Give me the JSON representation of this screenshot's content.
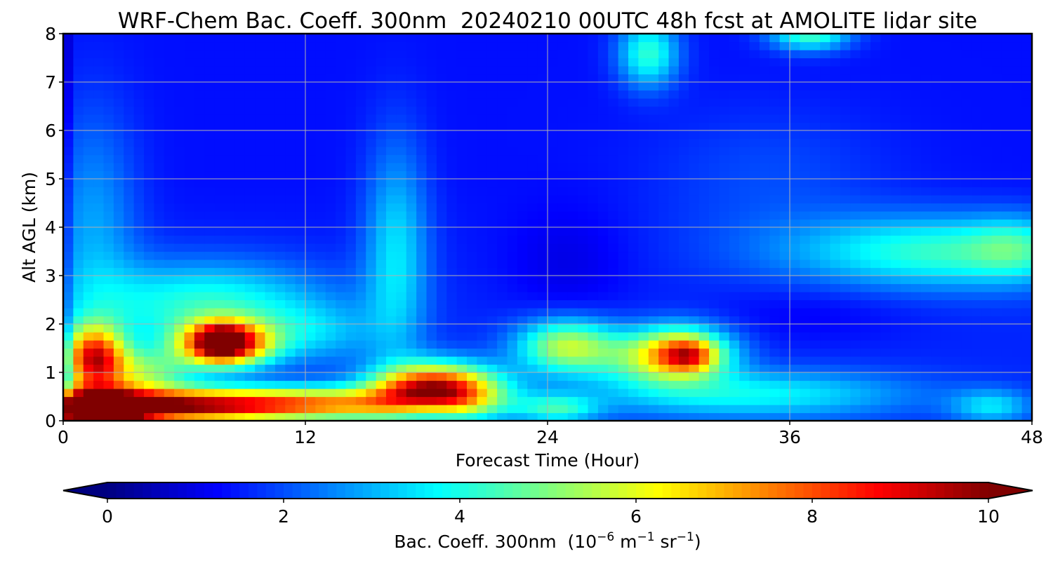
{
  "chart_data": {
    "type": "heatmap",
    "title": "WRF-Chem Bac. Coeff. 300nm  20240210 00UTC 48h fcst at AMOLITE lidar site",
    "xlabel": "Forecast Time (Hour)",
    "ylabel": "Alt AGL (km)",
    "xlim": [
      0,
      48
    ],
    "ylim": [
      0,
      8
    ],
    "xticks": [
      "0",
      "12",
      "24",
      "36",
      "48"
    ],
    "yticks": [
      "0",
      "1",
      "2",
      "3",
      "4",
      "5",
      "6",
      "7",
      "8"
    ],
    "grid": true,
    "colormap": "jet",
    "colorbar": {
      "orientation": "horizontal",
      "placement": "bottom",
      "range": [
        0,
        10
      ],
      "extend": "both",
      "ticks": [
        "0",
        "2",
        "4",
        "6",
        "8",
        "10"
      ],
      "label_main": "Bac. Coeff. 300nm  (10",
      "label_exp1": "−6",
      "label_mid": " m",
      "label_exp2": "−1",
      "label_mid2": " sr",
      "label_exp3": "−1",
      "label_end": ")"
    },
    "x": [
      0,
      1,
      2,
      3,
      4,
      5,
      6,
      7,
      8,
      9,
      10,
      11,
      12,
      13,
      14,
      15,
      16,
      17,
      18,
      19,
      20,
      21,
      22,
      23,
      24,
      25,
      26,
      27,
      28,
      29,
      30,
      31,
      32,
      33,
      34,
      35,
      36,
      37,
      38,
      39,
      40,
      41,
      42,
      43,
      44,
      45,
      46,
      47,
      48
    ],
    "y": [
      0,
      0.25,
      0.5,
      0.75,
      1,
      1.25,
      1.5,
      1.75,
      2,
      2.25,
      2.5,
      2.75,
      3,
      3.25,
      3.5,
      3.75,
      4,
      4.25,
      4.5,
      4.75,
      5,
      5.25,
      5.5,
      5.75,
      6,
      6.25,
      6.5,
      6.75,
      7,
      7.25,
      7.5,
      7.75,
      8
    ],
    "features": [
      {
        "x": 1.5,
        "y": 0.2,
        "rx": 2.5,
        "ry": 0.45,
        "v": 9.0
      },
      {
        "x": 5,
        "y": 0.3,
        "rx": 5,
        "ry": 0.35,
        "v": 6.5
      },
      {
        "x": 12,
        "y": 0.35,
        "rx": 6,
        "ry": 0.35,
        "v": 5.5
      },
      {
        "x": 18.5,
        "y": 0.6,
        "rx": 3.0,
        "ry": 0.55,
        "v": 8.5
      },
      {
        "x": 18,
        "y": 0.25,
        "rx": 2,
        "ry": 0.35,
        "v": -2.5
      },
      {
        "x": 1.5,
        "y": 1.3,
        "rx": 1.5,
        "ry": 0.65,
        "v": 6.5
      },
      {
        "x": 4,
        "y": 1.0,
        "rx": 2.5,
        "ry": 0.5,
        "v": 3.0
      },
      {
        "x": 8,
        "y": 1.6,
        "rx": 2.2,
        "ry": 0.45,
        "v": 8.0
      },
      {
        "x": 7.8,
        "y": 1.65,
        "rx": 1.0,
        "ry": 0.3,
        "v": 2.5
      },
      {
        "x": 7,
        "y": 2.4,
        "rx": 6,
        "ry": 0.9,
        "v": 2.6
      },
      {
        "x": 12.5,
        "y": 1.8,
        "rx": 3,
        "ry": 0.6,
        "v": 1.2
      },
      {
        "x": 16.5,
        "y": 3.5,
        "rx": 1.6,
        "ry": 2.3,
        "v": 2.0
      },
      {
        "x": 1.5,
        "y": 4.0,
        "rx": 2.2,
        "ry": 2.5,
        "v": 1.4
      },
      {
        "x": 25,
        "y": 1.55,
        "rx": 2.5,
        "ry": 0.55,
        "v": 4.0
      },
      {
        "x": 30.5,
        "y": 1.4,
        "rx": 2.5,
        "ry": 0.55,
        "v": 5.5
      },
      {
        "x": 31,
        "y": 1.35,
        "rx": 1.2,
        "ry": 0.3,
        "v": 2.5
      },
      {
        "x": 28,
        "y": 1.2,
        "rx": 2.5,
        "ry": 0.5,
        "v": 1.0
      },
      {
        "x": 34,
        "y": 0.55,
        "rx": 8,
        "ry": 0.5,
        "v": 2.2
      },
      {
        "x": 24.5,
        "y": 0.25,
        "rx": 2,
        "ry": 0.3,
        "v": 2.3
      },
      {
        "x": 44,
        "y": 3.5,
        "rx": 8,
        "ry": 0.75,
        "v": 2.8
      },
      {
        "x": 47,
        "y": 3.6,
        "rx": 2,
        "ry": 0.6,
        "v": 1.0
      },
      {
        "x": 29,
        "y": 7.6,
        "rx": 1.5,
        "ry": 0.7,
        "v": 2.8
      },
      {
        "x": 37,
        "y": 8.0,
        "rx": 2,
        "ry": 0.35,
        "v": 3.0
      },
      {
        "x": 35,
        "y": 5.0,
        "rx": 6,
        "ry": 1.5,
        "v": 0.6
      },
      {
        "x": 25,
        "y": 3.2,
        "rx": 3,
        "ry": 1.2,
        "v": -0.5
      },
      {
        "x": 37,
        "y": 2.2,
        "rx": 5,
        "ry": 0.6,
        "v": -0.4
      },
      {
        "x": 46,
        "y": 0.3,
        "rx": 2,
        "ry": 0.35,
        "v": 1.8
      }
    ]
  }
}
